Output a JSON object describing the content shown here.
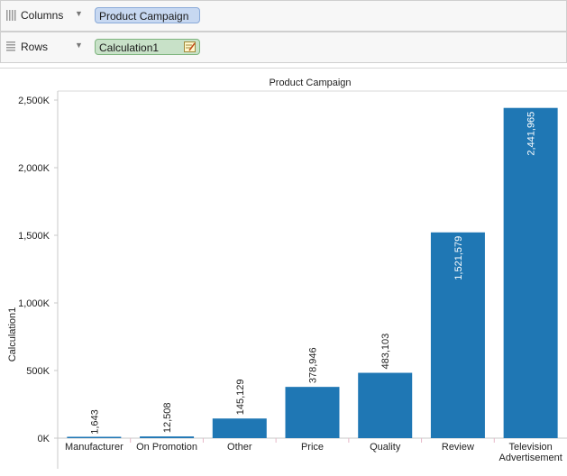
{
  "shelves": {
    "columns": {
      "label": "Columns",
      "pill": "Product Campaign"
    },
    "rows": {
      "label": "Rows",
      "pill": "Calculation1"
    }
  },
  "chart_data": {
    "type": "bar",
    "title": "Product Campaign",
    "xlabel": "",
    "ylabel": "Calculation1",
    "categories": [
      "Manufacturer",
      "On Promotion",
      "Other",
      "Price",
      "Quality",
      "Review",
      "Television Advertisement"
    ],
    "values": [
      1643,
      12508,
      145129,
      378946,
      483103,
      1521579,
      2441965
    ],
    "value_labels": [
      "1,643",
      "12,508",
      "145,129",
      "378,946",
      "483,103",
      "1,521,579",
      "2,441,965"
    ],
    "yticks": [
      0,
      500000,
      1000000,
      1500000,
      2000000,
      2500000
    ],
    "ytick_labels": [
      "0K",
      "500K",
      "1,000K",
      "1,500K",
      "2,000K",
      "2,500K"
    ],
    "ylim": [
      0,
      2500000
    ],
    "bar_color": "#1f77b4",
    "grid": false
  }
}
